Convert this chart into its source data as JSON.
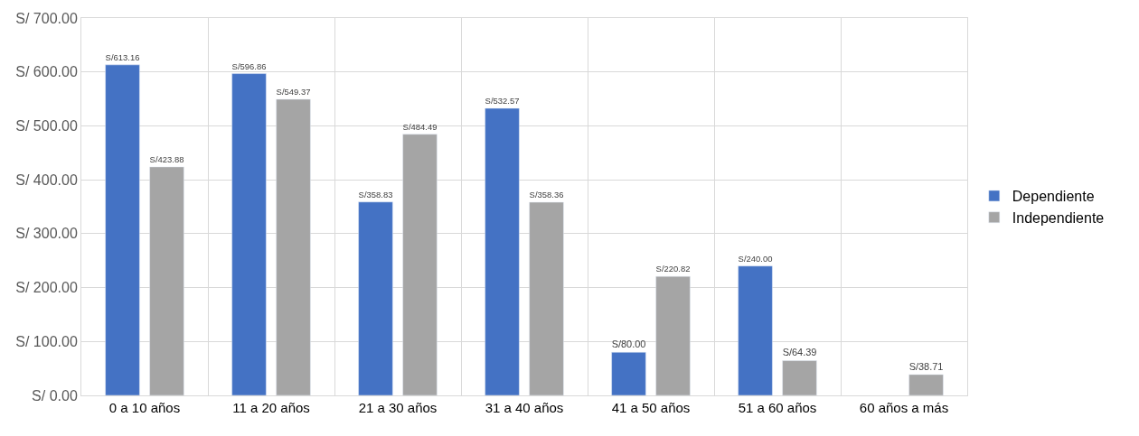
{
  "chart_data": {
    "type": "bar",
    "categories": [
      "0 a 10 años",
      "11 a 20 años",
      "21 a 30 años",
      "31 a 40 años",
      "41 a 50 años",
      "51 a 60 años",
      "60 años a más"
    ],
    "series": [
      {
        "name": "Dependiente",
        "color": "#4472c4",
        "values": [
          613.16,
          596.86,
          358.83,
          532.57,
          80.0,
          240.0,
          null
        ],
        "value_labels": [
          "S/613.16",
          "S/596.86",
          "S/358.83",
          "S/532.57",
          "S/80.00",
          "S/240.00",
          null
        ]
      },
      {
        "name": "Independiente",
        "color": "#a5a5a5",
        "values": [
          423.88,
          549.37,
          484.49,
          358.36,
          220.82,
          64.39,
          38.71
        ],
        "value_labels": [
          "S/423.88",
          "S/549.37",
          "S/484.49",
          "S/358.36",
          "S/220.82",
          "S/64.39",
          "S/38.71"
        ]
      }
    ],
    "ylim": [
      0,
      700
    ],
    "yticks": [
      {
        "value": 0,
        "label": "S/ 0.00"
      },
      {
        "value": 100,
        "label": "S/ 100.00"
      },
      {
        "value": 200,
        "label": "S/ 200.00"
      },
      {
        "value": 300,
        "label": "S/ 300.00"
      },
      {
        "value": 400,
        "label": "S/ 400.00"
      },
      {
        "value": 500,
        "label": "S/ 500.00"
      },
      {
        "value": 600,
        "label": "S/ 600.00"
      },
      {
        "value": 700,
        "label": "S/ 700.00"
      }
    ],
    "grid": true,
    "legend": "right"
  }
}
